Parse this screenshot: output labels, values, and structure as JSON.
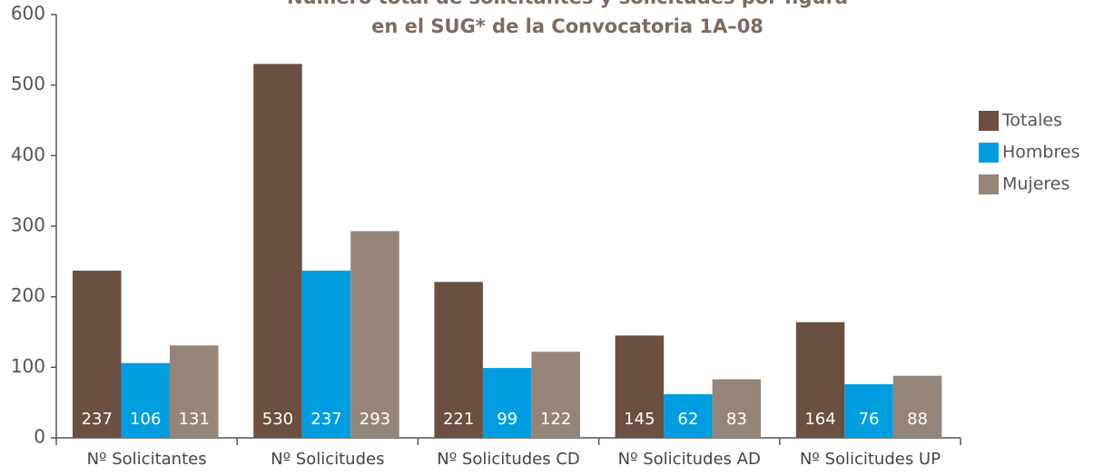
{
  "chart_data": {
    "type": "bar",
    "title": [
      "Número total de solicitantes y solicitudes por figura",
      "en el SUG* de la Convocatoria 1A–08"
    ],
    "categories": [
      "Nº Solicitantes",
      "Nº Solicitudes",
      "Nº Solicitudes CD",
      "Nº Solicitudes AD",
      "Nº Solicitudes UP"
    ],
    "series": [
      {
        "name": "Totales",
        "color": "#6b4f40",
        "values": [
          237,
          530,
          221,
          145,
          164
        ]
      },
      {
        "name": "Hombres",
        "color": "#009ee0",
        "values": [
          106,
          237,
          99,
          62,
          76
        ]
      },
      {
        "name": "Mujeres",
        "color": "#958579",
        "values": [
          131,
          293,
          122,
          83,
          88
        ]
      }
    ],
    "ylim": [
      0,
      600
    ],
    "yticks": [
      0,
      100,
      200,
      300,
      400,
      500,
      600
    ],
    "legend": "right",
    "grid": false
  }
}
